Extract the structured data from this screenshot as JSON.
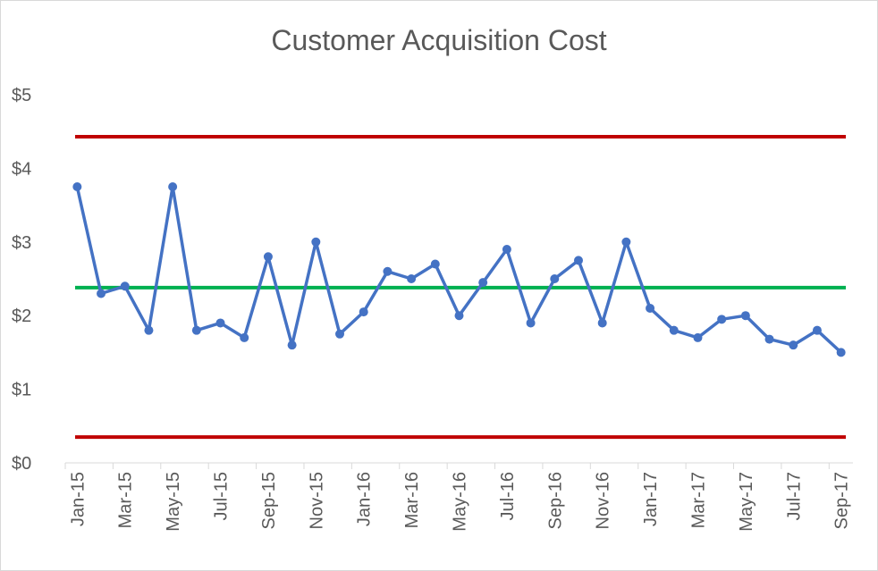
{
  "chart_data": {
    "type": "line",
    "title": "Customer Acquisition Cost",
    "categories": [
      "Jan-15",
      "Feb-15",
      "Mar-15",
      "Apr-15",
      "May-15",
      "Jun-15",
      "Jul-15",
      "Aug-15",
      "Sep-15",
      "Oct-15",
      "Nov-15",
      "Dec-15",
      "Jan-16",
      "Feb-16",
      "Mar-16",
      "Apr-16",
      "May-16",
      "Jun-16",
      "Jul-16",
      "Aug-16",
      "Sep-16",
      "Oct-16",
      "Nov-16",
      "Dec-16",
      "Jan-17",
      "Feb-17",
      "Mar-17",
      "Apr-17",
      "May-17",
      "Jun-17",
      "Jul-17",
      "Aug-17",
      "Sep-17"
    ],
    "x_tick_labels": [
      "Jan-15",
      "Mar-15",
      "May-15",
      "Jul-15",
      "Sep-15",
      "Nov-15",
      "Jan-16",
      "Mar-16",
      "May-16",
      "Jul-16",
      "Sep-16",
      "Nov-16",
      "Jan-17",
      "Mar-17",
      "May-17",
      "Jul-17",
      "Sep-17"
    ],
    "series": [
      {
        "values": [
          3.75,
          2.3,
          2.4,
          1.8,
          3.75,
          1.8,
          1.9,
          1.7,
          2.8,
          1.6,
          3.0,
          1.75,
          2.05,
          2.6,
          2.5,
          2.7,
          2.0,
          2.45,
          2.9,
          1.9,
          2.5,
          2.75,
          1.9,
          3.0,
          2.1,
          1.8,
          1.7,
          1.95,
          2.0,
          1.68,
          1.6,
          1.8,
          1.5
        ],
        "color": "#4472c4"
      }
    ],
    "reference_lines": [
      {
        "value": 4.43,
        "color": "#c00000"
      },
      {
        "value": 2.38,
        "color": "#00b050"
      },
      {
        "value": 0.35,
        "color": "#c00000"
      }
    ],
    "y_tick_labels": [
      "$0",
      "$1",
      "$2",
      "$3",
      "$4",
      "$5"
    ],
    "ylim": [
      0,
      5
    ],
    "grid": false,
    "xlabel": "",
    "ylabel": ""
  }
}
